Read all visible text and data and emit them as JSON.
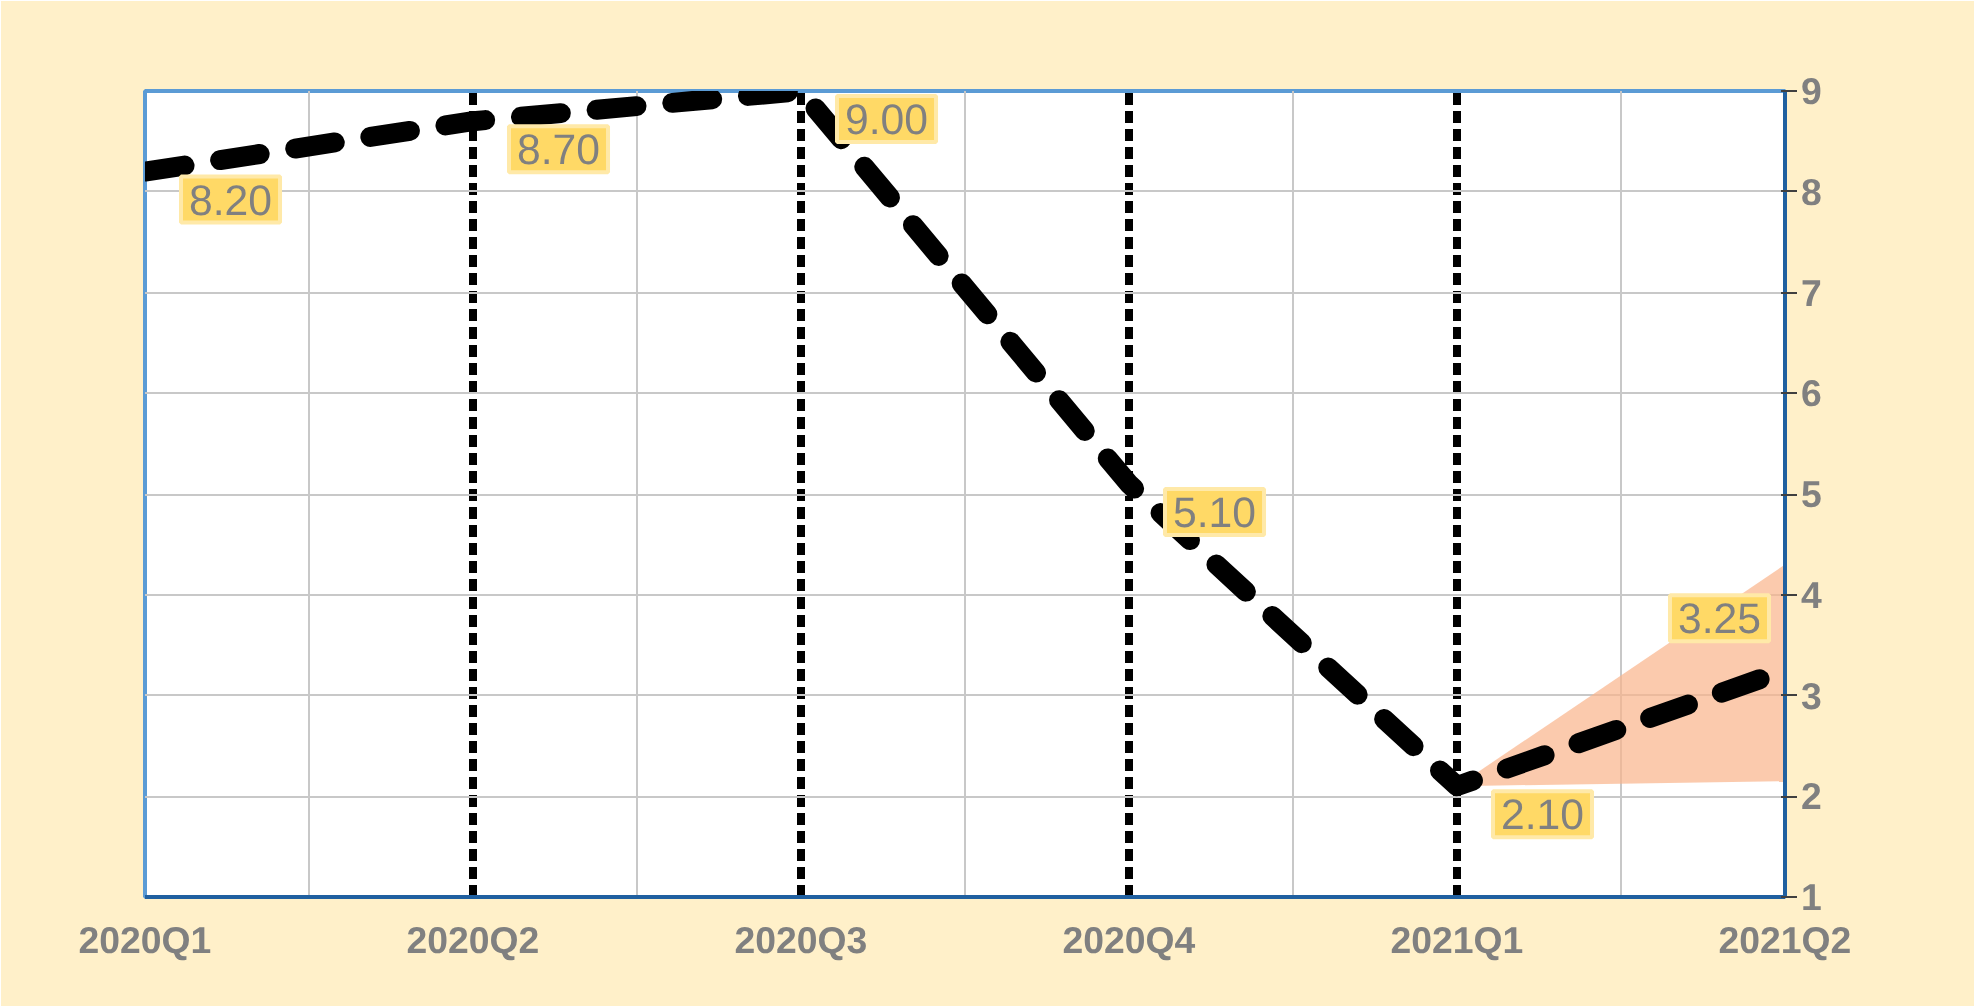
{
  "chart_data": {
    "type": "line",
    "categories": [
      "2020Q1",
      "2020Q2",
      "2020Q3",
      "2020Q4",
      "2021Q1",
      "2021Q2"
    ],
    "series": [
      {
        "color": "#000000",
        "values": [
          8.2,
          8.7,
          9.0,
          5.1,
          2.1,
          3.25
        ],
        "lower": [
          null,
          null,
          null,
          null,
          2.1,
          2.15
        ],
        "upper": [
          null,
          null,
          null,
          null,
          2.1,
          4.3
        ],
        "value_labels": [
          "8.20",
          "8.70",
          "9.00",
          "5.10",
          "2.10",
          "3.25"
        ]
      }
    ],
    "ylim": [
      1,
      9
    ],
    "yticks": [
      1,
      2,
      3,
      4,
      5,
      6,
      7,
      8,
      9
    ],
    "grid": true,
    "marker": "none",
    "line_style": "dashed"
  }
}
